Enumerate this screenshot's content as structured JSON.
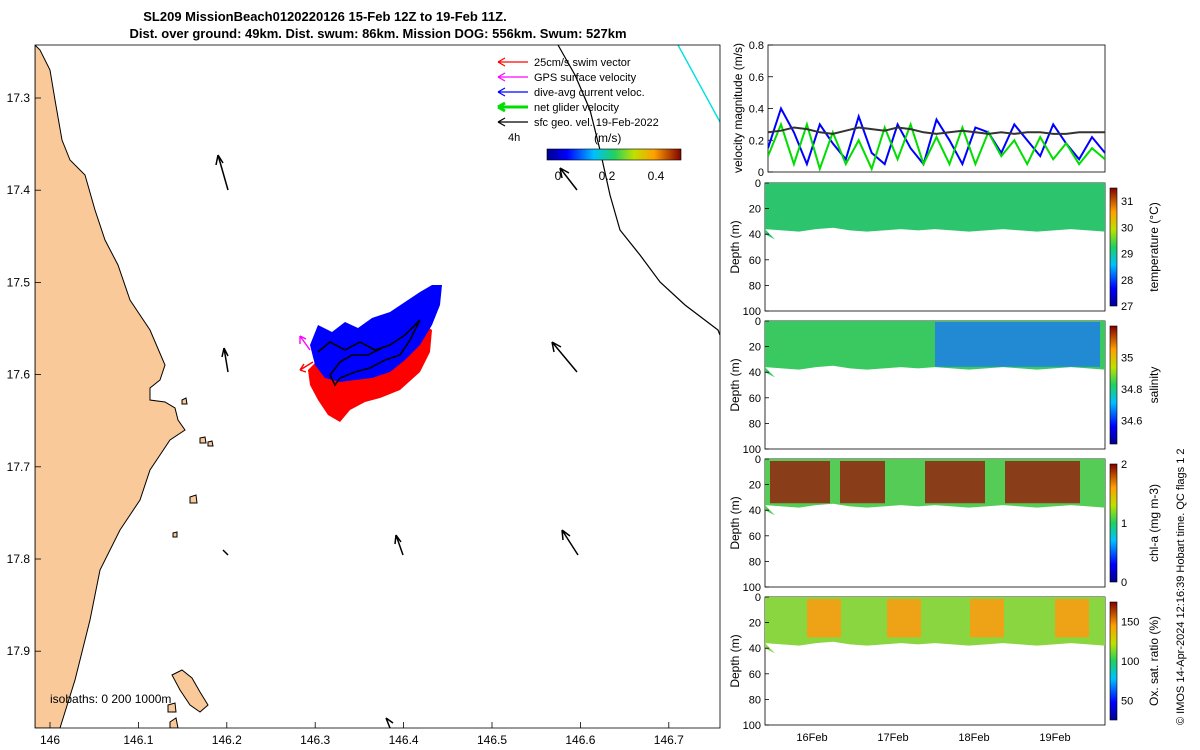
{
  "header": {
    "title_line1": "SL209 MissionBeach0120220126 15-Feb 12Z to 19-Feb 11Z.",
    "title_line2": "Dist. over ground: 49km. Dist. swum: 86km. Mission DOG: 556km. Swum: 527km"
  },
  "map": {
    "legend": [
      {
        "label": "25cm/s swim vector",
        "color": "#ff0000"
      },
      {
        "label": "GPS surface velocity",
        "color": "#ff00ff"
      },
      {
        "label": "dive-avg current veloc.",
        "color": "#0000ff"
      },
      {
        "label": "net glider velocity",
        "color": "#00dd00"
      },
      {
        "label": "sfc geo. vel. 19-Feb-2022",
        "color": "#000000"
      }
    ],
    "colorbar_label": "(m/s)",
    "colorbar_extra": "4h",
    "colorbar_ticks": [
      "0",
      "0.2",
      "0.4"
    ],
    "isobath_note": "isobaths: 0   200  1000m",
    "land_color": "#f9c999",
    "swim_color": "#ff0000",
    "current_color": "#0000ff",
    "track_color": "#000000",
    "xticks": [
      "146",
      "146.1",
      "146.2",
      "146.3",
      "146.4",
      "146.5",
      "146.6",
      "146.7"
    ],
    "yticks": [
      "17.3",
      "17.4",
      "17.5",
      "17.6",
      "17.7",
      "17.8",
      "17.9"
    ]
  },
  "side": {
    "time_ticks": [
      "16Feb",
      "17Feb",
      "18Feb",
      "19Feb"
    ],
    "depth_label": "Depth (m)",
    "depth_ticks": [
      "0",
      "20",
      "40",
      "60",
      "80",
      "100"
    ],
    "credit": "© IMOS 14-Apr-2024 12:16:39 Hobart time. QC flags 1  2"
  },
  "chart_data": [
    {
      "type": "line",
      "title": "",
      "xlabel": "",
      "ylabel": "velocity magnitude (m/s)",
      "ylim": [
        0,
        0.8
      ],
      "yticks": [
        "0",
        "0.2",
        "0.4",
        "0.6",
        "0.8"
      ],
      "series": [
        {
          "name": "dive-avg current veloc.",
          "color": "#0000ff",
          "values": [
            0.15,
            0.4,
            0.25,
            0.05,
            0.3,
            0.18,
            0.08,
            0.35,
            0.12,
            0.05,
            0.3,
            0.15,
            0.05,
            0.33,
            0.2,
            0.05,
            0.28,
            0.25,
            0.12,
            0.3,
            0.2,
            0.1,
            0.3,
            0.18,
            0.08,
            0.22,
            0.12
          ]
        },
        {
          "name": "net glider velocity",
          "color": "#00dd00",
          "values": [
            0.1,
            0.3,
            0.05,
            0.3,
            0.02,
            0.25,
            0.05,
            0.2,
            0.02,
            0.28,
            0.08,
            0.3,
            0.05,
            0.22,
            0.05,
            0.28,
            0.05,
            0.25,
            0.1,
            0.2,
            0.05,
            0.22,
            0.08,
            0.18,
            0.05,
            0.15,
            0.08
          ]
        },
        {
          "name": "sfc geo. vel.",
          "color": "#333333",
          "values": [
            0.25,
            0.26,
            0.28,
            0.27,
            0.25,
            0.24,
            0.26,
            0.28,
            0.27,
            0.26,
            0.28,
            0.27,
            0.25,
            0.24,
            0.25,
            0.26,
            0.25,
            0.24,
            0.25,
            0.24,
            0.25,
            0.25,
            0.24,
            0.24,
            0.25,
            0.25,
            0.25
          ]
        }
      ]
    },
    {
      "type": "heatmap",
      "ylabel": "Depth (m)",
      "clabel": "temperature (°C)",
      "clim": [
        27,
        31.5
      ],
      "cticks": [
        "27",
        "28",
        "29",
        "30",
        "31"
      ],
      "ylim": [
        0,
        100
      ]
    },
    {
      "type": "heatmap",
      "ylabel": "Depth (m)",
      "clabel": "salinity",
      "clim": [
        34.45,
        35.2
      ],
      "cticks": [
        "34.6",
        "34.8",
        "35"
      ],
      "ylim": [
        0,
        100
      ]
    },
    {
      "type": "heatmap",
      "ylabel": "Depth (m)",
      "clabel": "chl-a (mg m-3)",
      "clim": [
        0,
        2
      ],
      "cticks": [
        "0",
        "1",
        "2"
      ],
      "ylim": [
        0,
        100
      ]
    },
    {
      "type": "heatmap",
      "ylabel": "Depth (m)",
      "clabel": "Ox. sat. ratio (%)",
      "clim": [
        25,
        175
      ],
      "cticks": [
        "50",
        "100",
        "150"
      ],
      "ylim": [
        0,
        100
      ]
    }
  ]
}
